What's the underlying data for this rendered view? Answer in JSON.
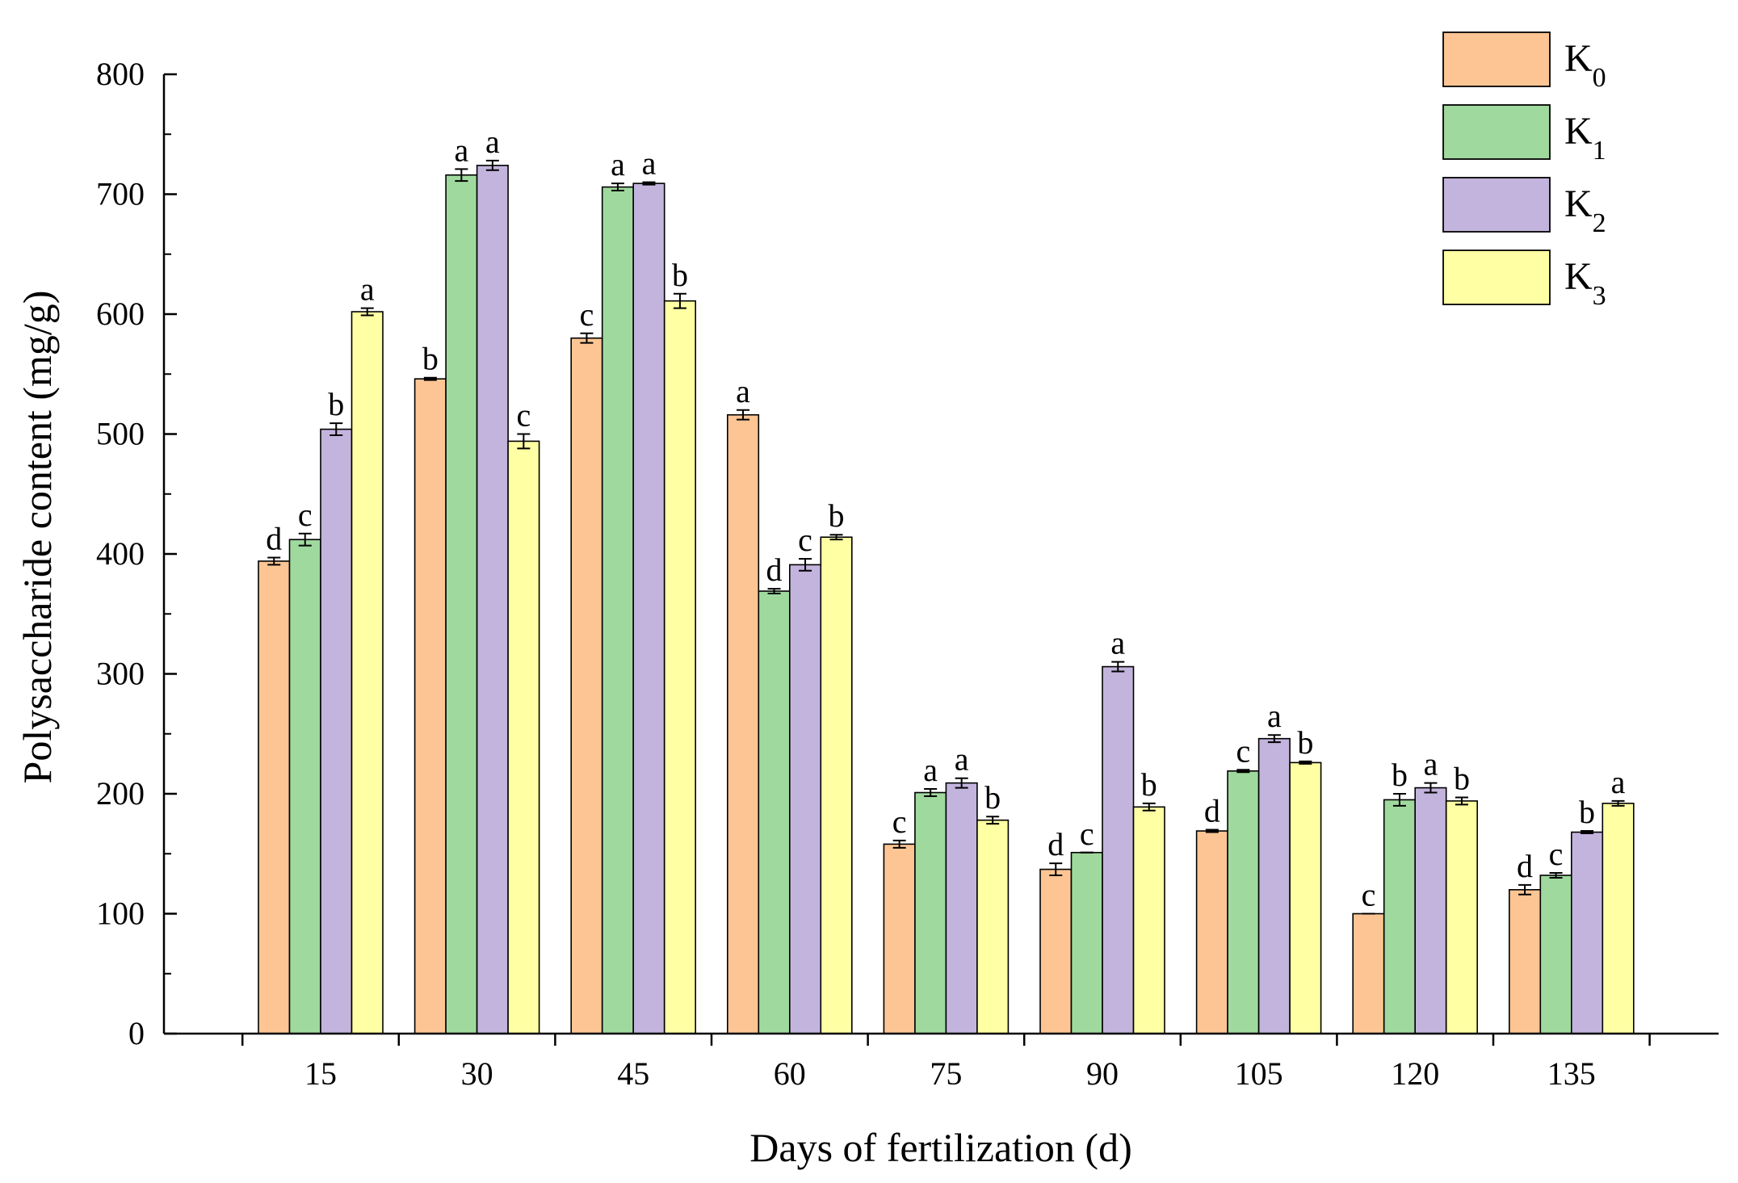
{
  "chart_data": {
    "type": "bar",
    "xlabel": "Days of fertilization (d)",
    "ylabel": "Polysaccharide content (mg/g)",
    "ylim": [
      0,
      800
    ],
    "yticks": [
      0,
      100,
      200,
      300,
      400,
      500,
      600,
      700,
      800
    ],
    "categories": [
      "15",
      "30",
      "45",
      "60",
      "75",
      "90",
      "105",
      "120",
      "135"
    ],
    "legend_position": "top-right",
    "grid": false,
    "series": [
      {
        "name": "K",
        "subscript": "0",
        "color": "#FCC593",
        "values": [
          394,
          546,
          580,
          516,
          158,
          137,
          169,
          100,
          120
        ],
        "errors": [
          3,
          1,
          4,
          4,
          3,
          5,
          1,
          0,
          4
        ],
        "labels": [
          "d",
          "b",
          "c",
          "a",
          "c",
          "d",
          "d",
          "c",
          "d"
        ]
      },
      {
        "name": "K",
        "subscript": "1",
        "color": "#9FD99E",
        "values": [
          412,
          716,
          706,
          369,
          201,
          151,
          219,
          195,
          132
        ],
        "errors": [
          5,
          5,
          3,
          2,
          3,
          0,
          1,
          5,
          2
        ],
        "labels": [
          "c",
          "a",
          "a",
          "d",
          "a",
          "c",
          "c",
          "b",
          "c"
        ]
      },
      {
        "name": "K",
        "subscript": "2",
        "color": "#C3B4DD",
        "values": [
          504,
          724,
          709,
          391,
          209,
          306,
          246,
          205,
          168
        ],
        "errors": [
          5,
          4,
          1,
          5,
          4,
          4,
          3,
          4,
          1
        ],
        "labels": [
          "b",
          "a",
          "a",
          "c",
          "a",
          "a",
          "a",
          "a",
          "b"
        ]
      },
      {
        "name": "K",
        "subscript": "3",
        "color": "#FFFFA3",
        "values": [
          602,
          494,
          611,
          414,
          178,
          189,
          226,
          194,
          192
        ],
        "errors": [
          3,
          6,
          6,
          2,
          3,
          3,
          1,
          3,
          2
        ],
        "labels": [
          "a",
          "c",
          "b",
          "b",
          "b",
          "b",
          "b",
          "b",
          "a"
        ]
      }
    ]
  }
}
